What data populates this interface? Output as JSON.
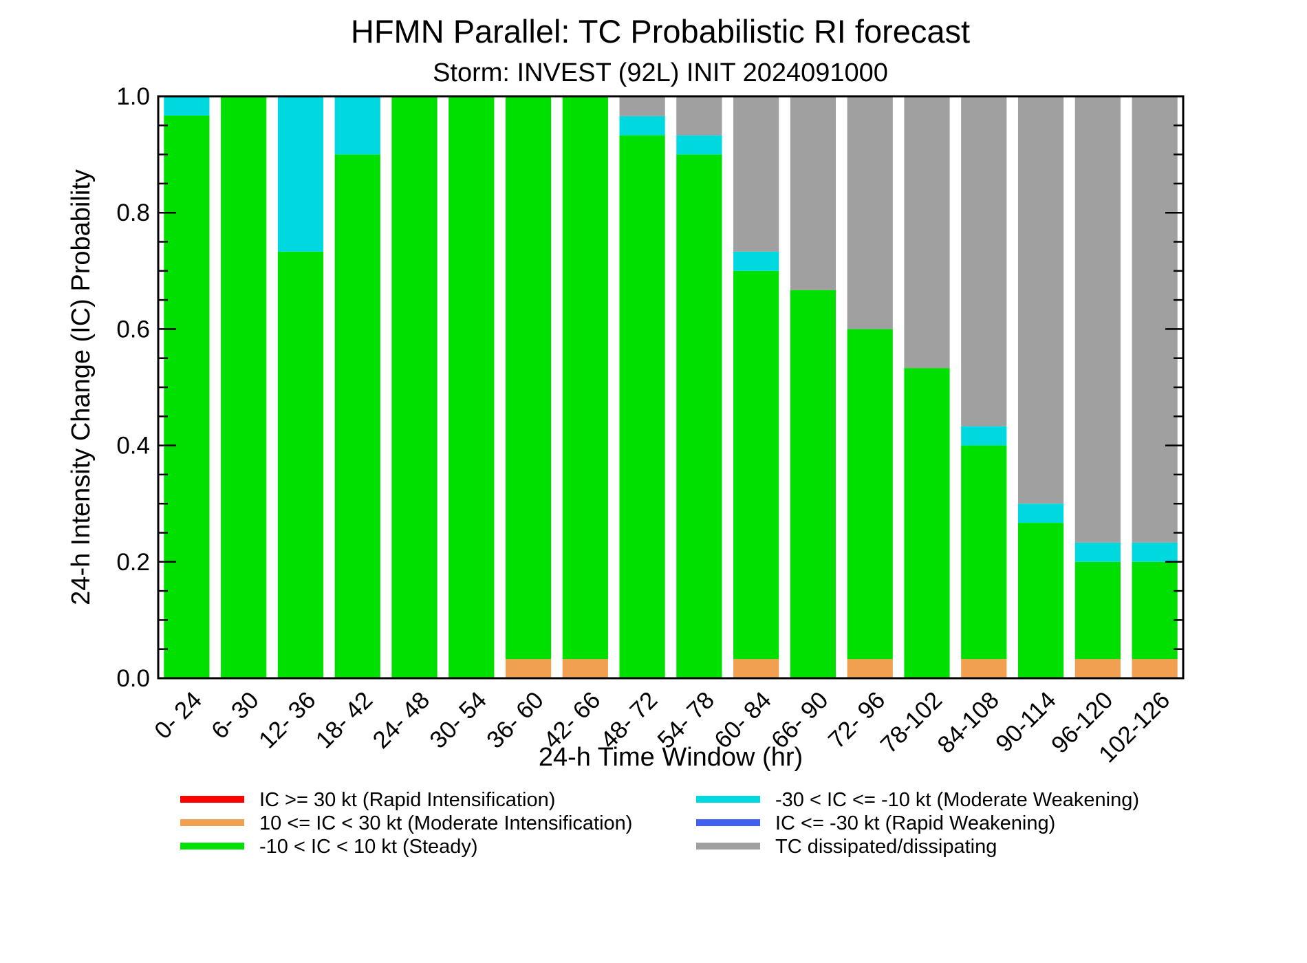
{
  "chart_data": {
    "type": "bar",
    "stacked": true,
    "title": "HFMN Parallel: TC Probabilistic RI forecast",
    "subtitle": "Storm: INVEST (92L) INIT 2024091000",
    "xlabel": "24-h Time Window (hr)",
    "ylabel": "24-h Intensity Change (IC) Probability",
    "ylim": [
      0,
      1
    ],
    "yticks": [
      "0.0",
      "0.2",
      "0.4",
      "0.6",
      "0.8",
      "1.0"
    ],
    "grid": false,
    "categories": [
      "0- 24",
      "6- 30",
      "12- 36",
      "18- 42",
      "24- 48",
      "30- 54",
      "36- 60",
      "42- 66",
      "48- 72",
      "54- 78",
      "60- 84",
      "66- 90",
      "72- 96",
      "78-102",
      "84-108",
      "90-114",
      "96-120",
      "102-126"
    ],
    "series": [
      {
        "name": "IC >= 30 kt (Rapid Intensification)",
        "color": "#ff0000",
        "values": [
          0,
          0,
          0,
          0,
          0,
          0,
          0,
          0,
          0,
          0,
          0,
          0,
          0,
          0,
          0,
          0,
          0,
          0
        ]
      },
      {
        "name": "10 <= IC < 30 kt (Moderate Intensification)",
        "color": "#f0a050",
        "values": [
          0,
          0,
          0,
          0,
          0,
          0,
          0.033,
          0.033,
          0,
          0,
          0.033,
          0,
          0.033,
          0,
          0.033,
          0,
          0.033,
          0.033
        ]
      },
      {
        "name": "-10 < IC < 10 kt (Steady)",
        "color": "#00e000",
        "values": [
          0.967,
          1.0,
          0.733,
          0.9,
          1.0,
          1.0,
          0.967,
          0.967,
          0.933,
          0.9,
          0.667,
          0.667,
          0.567,
          0.533,
          0.367,
          0.267,
          0.167,
          0.167
        ]
      },
      {
        "name": "-30 < IC <= -10 kt (Moderate Weakening)",
        "color": "#00d8e0",
        "values": [
          0.033,
          0,
          0.267,
          0.1,
          0,
          0,
          0,
          0,
          0.033,
          0.033,
          0.033,
          0,
          0,
          0,
          0.033,
          0.033,
          0.033,
          0.033
        ]
      },
      {
        "name": "IC <= -30 kt (Rapid Weakening)",
        "color": "#4060f0",
        "values": [
          0,
          0,
          0,
          0,
          0,
          0,
          0,
          0,
          0,
          0,
          0,
          0,
          0,
          0,
          0,
          0,
          0,
          0
        ]
      },
      {
        "name": "TC dissipated/dissipating",
        "color": "#a0a0a0",
        "values": [
          0,
          0,
          0,
          0,
          0,
          0,
          0,
          0,
          0.033,
          0.067,
          0.267,
          0.333,
          0.4,
          0.467,
          0.567,
          0.7,
          0.767,
          0.767
        ]
      }
    ],
    "stack_order": [
      1,
      2,
      3,
      5
    ],
    "legend": {
      "placement": "bottom",
      "left_column": [
        0,
        1,
        2
      ],
      "right_column": [
        3,
        4,
        5
      ]
    }
  }
}
